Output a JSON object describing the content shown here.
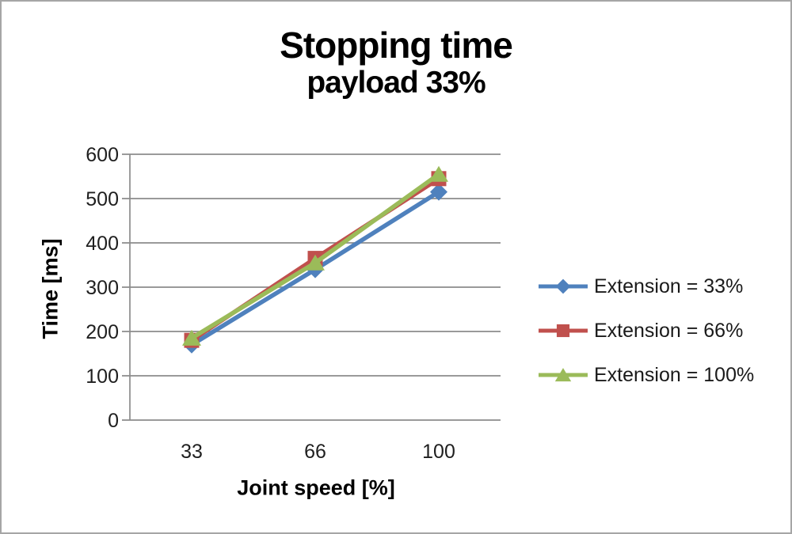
{
  "chart_data": {
    "type": "line",
    "title": "Stopping time",
    "subtitle": "payload 33%",
    "xlabel": "Joint speed [%]",
    "ylabel": "Time [ms]",
    "categories": [
      "33",
      "66",
      "100"
    ],
    "series": [
      {
        "name": "Extension = 33%",
        "marker": "diamond",
        "color": "#4F81BD",
        "values": [
          170,
          340,
          515
        ]
      },
      {
        "name": "Extension = 66%",
        "marker": "square",
        "color": "#C0504D",
        "values": [
          180,
          365,
          545
        ]
      },
      {
        "name": "Extension = 100%",
        "marker": "triangle",
        "color": "#9BBB59",
        "values": [
          185,
          355,
          555
        ]
      }
    ],
    "ylim": [
      0,
      600
    ],
    "ytick_step": 100,
    "grid": true,
    "legend_position": "right",
    "gridline_color": "#8C8C8C",
    "axis_color": "#8C8C8C",
    "text_color": "#1f1f1f"
  }
}
